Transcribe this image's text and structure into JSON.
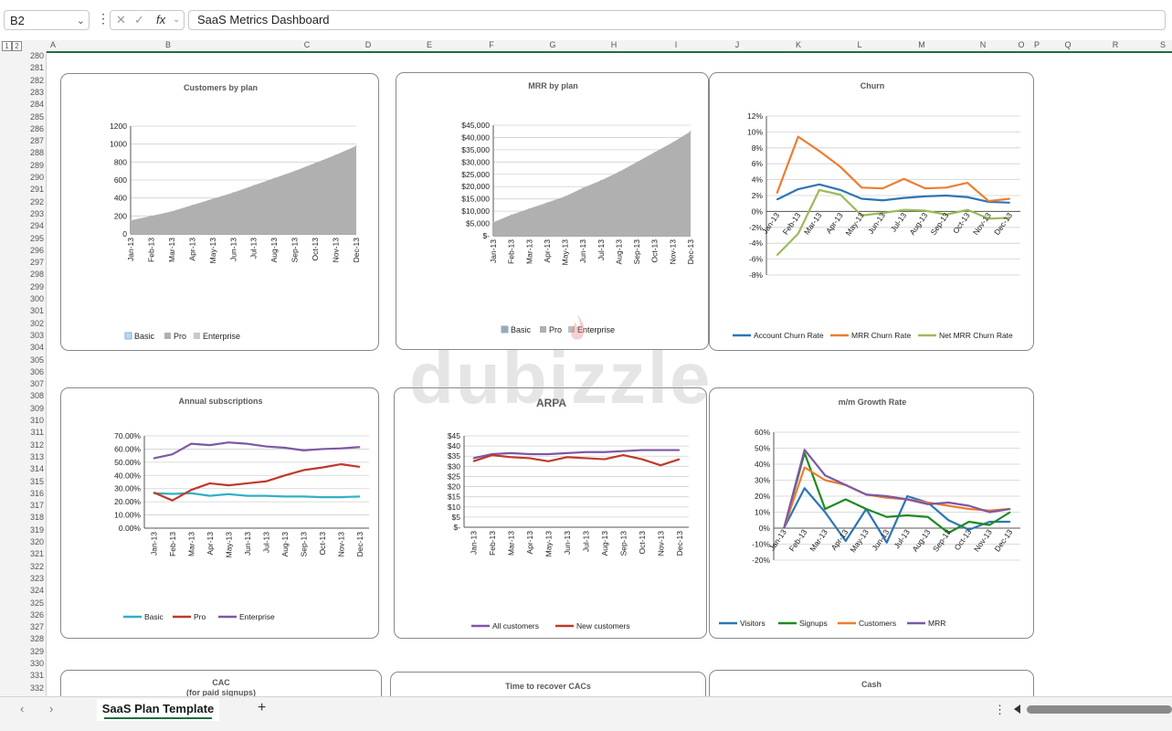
{
  "formula_bar": {
    "name_box": "B2",
    "cancel_icon": "x-icon",
    "enter_icon": "check-icon",
    "fx_label": "fx",
    "formula": "SaaS Metrics Dashboard"
  },
  "outline_levels": [
    "1",
    "2"
  ],
  "columns": [
    "A",
    "B",
    "C",
    "D",
    "E",
    "F",
    "G",
    "H",
    "I",
    "J",
    "K",
    "L",
    "M",
    "N",
    "O",
    "P",
    "Q",
    "R",
    "S"
  ],
  "rows": [
    "280",
    "281",
    "282",
    "283",
    "284",
    "285",
    "286",
    "287",
    "288",
    "289",
    "290",
    "291",
    "292",
    "293",
    "294",
    "295",
    "296",
    "297",
    "298",
    "299",
    "300",
    "301",
    "302",
    "303",
    "304",
    "305",
    "306",
    "307",
    "308",
    "309",
    "310",
    "311",
    "312",
    "313",
    "314",
    "315",
    "316",
    "317",
    "318",
    "319",
    "320",
    "321",
    "322",
    "323",
    "324",
    "325",
    "326",
    "327",
    "328",
    "329",
    "330",
    "331",
    "332"
  ],
  "watermark": "dubizzle",
  "sheet_tabs": {
    "active": "SaaS Plan Template",
    "add_icon": "plus-icon"
  },
  "chart_data": [
    {
      "type": "area",
      "title": "Customers by plan",
      "categories": [
        "Jan-13",
        "Feb-13",
        "Mar-13",
        "Apr-13",
        "May-13",
        "Jun-13",
        "Jul-13",
        "Aug-13",
        "Sep-13",
        "Oct-13",
        "Nov-13",
        "Dec-13"
      ],
      "ylim": [
        0,
        1200
      ],
      "yticks": [
        "0",
        "200",
        "400",
        "600",
        "800",
        "1000",
        "1200"
      ],
      "series": [
        {
          "name": "Basic",
          "values": [
            0,
            0,
            0,
            0,
            0,
            0,
            0,
            0,
            0,
            0,
            0,
            0
          ],
          "color": "#bdd7ee"
        },
        {
          "name": "Pro",
          "values": [
            150,
            200,
            250,
            320,
            390,
            460,
            540,
            620,
            700,
            790,
            880,
            980
          ],
          "color": "#b0b0b0"
        },
        {
          "name": "Enterprise",
          "values": [
            0,
            0,
            0,
            0,
            0,
            0,
            0,
            0,
            0,
            0,
            0,
            0
          ],
          "color": "#c9c9c9"
        }
      ],
      "legend": "bottom"
    },
    {
      "type": "area",
      "title": "MRR by plan",
      "categories": [
        "Jan-13",
        "Feb-13",
        "Mar-13",
        "Apr-13",
        "May-13",
        "Jun-13",
        "Jul-13",
        "Aug-13",
        "Sep-13",
        "Oct-13",
        "Nov-13",
        "Dec-13"
      ],
      "ylim": [
        0,
        45000
      ],
      "yticks": [
        "$-",
        "$5,000",
        "$10,000",
        "$15,000",
        "$20,000",
        "$25,000",
        "$30,000",
        "$35,000",
        "$40,000",
        "$45,000"
      ],
      "series": [
        {
          "name": "Basic",
          "values": [
            0,
            0,
            0,
            0,
            0,
            0,
            0,
            0,
            0,
            0,
            0,
            0
          ],
          "color": "#a6a6a6"
        },
        {
          "name": "Pro",
          "values": [
            5500,
            8500,
            11000,
            13500,
            16000,
            19500,
            22500,
            26000,
            30000,
            34000,
            38000,
            42500
          ],
          "color": "#b0b0b0"
        },
        {
          "name": "Enterprise",
          "values": [
            0,
            0,
            0,
            0,
            0,
            0,
            0,
            0,
            0,
            0,
            0,
            0
          ],
          "color": "#bfbfbf"
        }
      ],
      "legend": "bottom"
    },
    {
      "type": "line",
      "title": "Churn",
      "categories": [
        "Jan-13",
        "Feb-13",
        "Mar-13",
        "Apr-13",
        "May-13",
        "Jun-13",
        "Jul-13",
        "Aug-13",
        "Sep-13",
        "Oct-13",
        "Nov-13",
        "Dec-13"
      ],
      "ylim": [
        -8,
        12
      ],
      "yticks": [
        "-8%",
        "-6%",
        "-4%",
        "-2%",
        "0%",
        "2%",
        "4%",
        "6%",
        "8%",
        "10%",
        "12%"
      ],
      "series": [
        {
          "name": "Account Churn Rate",
          "values": [
            1.5,
            2.8,
            3.4,
            2.7,
            1.6,
            1.4,
            1.7,
            1.9,
            2.0,
            1.8,
            1.2,
            1.1
          ],
          "color": "#2e75b6"
        },
        {
          "name": "MRR Churn Rate",
          "values": [
            2.3,
            9.4,
            7.6,
            5.6,
            3.0,
            2.9,
            4.1,
            2.9,
            3.0,
            3.6,
            1.3,
            1.6
          ],
          "color": "#ed7d31"
        },
        {
          "name": "Net MRR Churn Rate",
          "values": [
            -5.5,
            -2.8,
            2.7,
            2.1,
            -0.5,
            -0.2,
            0.2,
            0.1,
            -0.4,
            0.2,
            -0.9,
            -0.8
          ],
          "color": "#9bbb59"
        }
      ],
      "legend": "bottom"
    },
    {
      "type": "line",
      "title": "Annual subscriptions",
      "categories": [
        "Jan-13",
        "Feb-13",
        "Mar-13",
        "Apr-13",
        "May-13",
        "Jun-13",
        "Jul-13",
        "Aug-13",
        "Sep-13",
        "Oct-13",
        "Nov-13",
        "Dec-13"
      ],
      "ylim": [
        0,
        70
      ],
      "yticks": [
        "0.00%",
        "10.00%",
        "20.00%",
        "30.00%",
        "40.00%",
        "50.00%",
        "60.00%",
        "70.00%"
      ],
      "series": [
        {
          "name": "Basic",
          "values": [
            26.5,
            26,
            26.5,
            24.5,
            25.8,
            24.5,
            24.5,
            24,
            24,
            23.5,
            23.5,
            24
          ],
          "color": "#31b0c4"
        },
        {
          "name": "Pro",
          "values": [
            27,
            21,
            29,
            34,
            32.5,
            34,
            35.5,
            40,
            44,
            46,
            48.5,
            46.5
          ],
          "color": "#c0392b"
        },
        {
          "name": "Enterprise",
          "values": [
            53,
            56,
            64,
            63,
            65,
            64,
            62,
            61,
            59,
            60,
            60.5,
            61.5
          ],
          "color": "#7e57a6"
        }
      ],
      "legend": "bottom"
    },
    {
      "type": "line",
      "title": "ARPA",
      "categories": [
        "Jan-13",
        "Feb-13",
        "Mar-13",
        "Apr-13",
        "May-13",
        "Jun-13",
        "Jul-13",
        "Aug-13",
        "Sep-13",
        "Oct-13",
        "Nov-13",
        "Dec-13"
      ],
      "ylim": [
        0,
        45
      ],
      "yticks": [
        "$-",
        "$5",
        "$10",
        "$15",
        "$20",
        "$25",
        "$30",
        "$35",
        "$40",
        "$45"
      ],
      "series": [
        {
          "name": "All customers",
          "values": [
            34,
            36,
            36.5,
            36,
            36,
            36.5,
            37,
            37,
            37.5,
            38,
            38,
            38
          ],
          "color": "#7e57a6"
        },
        {
          "name": "New customers",
          "values": [
            32.5,
            35.5,
            34.5,
            34,
            32.5,
            34.5,
            34,
            33.5,
            35.5,
            33.5,
            30.5,
            33.5
          ],
          "color": "#c0392b"
        }
      ],
      "legend": "bottom"
    },
    {
      "type": "line",
      "title": "m/m Growth Rate",
      "categories": [
        "Jan-13",
        "Feb-13",
        "Mar-13",
        "Apr-13",
        "May-13",
        "Jun-13",
        "Jul-13",
        "Aug-13",
        "Sep-13",
        "Oct-13",
        "Nov-13",
        "Dec-13"
      ],
      "ylim": [
        -20,
        60
      ],
      "yticks": [
        "-20%",
        "-10%",
        "0%",
        "10%",
        "20%",
        "30%",
        "40%",
        "50%",
        "60%"
      ],
      "series": [
        {
          "name": "Visitors",
          "values": [
            0,
            25,
            10,
            -8,
            12,
            -9,
            20,
            16,
            5,
            -1,
            4,
            4
          ],
          "color": "#2e75b6"
        },
        {
          "name": "Signups",
          "values": [
            0,
            47,
            12,
            18,
            12,
            7,
            8,
            7,
            -3,
            4,
            2,
            10
          ],
          "color": "#1e8a1e"
        },
        {
          "name": "Customers",
          "values": [
            0,
            38,
            30,
            27,
            21,
            19,
            18,
            16,
            14,
            12,
            11,
            12
          ],
          "color": "#ed7d31"
        },
        {
          "name": "MRR",
          "values": [
            0,
            49,
            33,
            27,
            21,
            20,
            18,
            15,
            16,
            14,
            10,
            12
          ],
          "color": "#7e57a6"
        }
      ],
      "legend": "bottom"
    }
  ],
  "partial_charts": [
    {
      "title": "CAC",
      "subtitle": "(for paid signups)"
    },
    {
      "title": "Time to recover CACs",
      "subtitle": ""
    },
    {
      "title": "Cash",
      "subtitle": ""
    }
  ]
}
